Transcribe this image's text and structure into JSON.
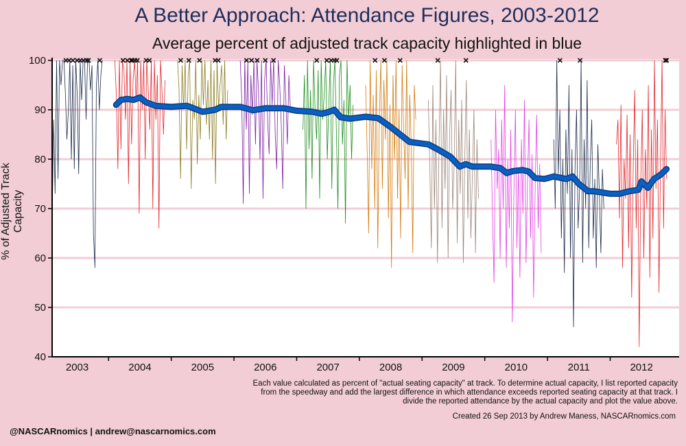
{
  "chart_data": {
    "type": "line",
    "title": "A Better Approach: Attendance Figures, 2003-2012",
    "subtitle": "Average percent of adjusted track capacity highlighted in blue",
    "ylabel": "% of Adjusted Track Capacity",
    "xlabel": "",
    "ylim": [
      40,
      100
    ],
    "xlim": [
      2002.6,
      2012.6
    ],
    "y_ticks": [
      "40",
      "50",
      "60",
      "70",
      "80",
      "90",
      "100"
    ],
    "x_ticks": [
      "2003",
      "2004",
      "2005",
      "2006",
      "2007",
      "2008",
      "2009",
      "2010",
      "2011",
      "2012"
    ],
    "gridlines": "horizontal",
    "series": [
      {
        "name": "",
        "color": "#0a5fc4",
        "x": [
          2003.62,
          2003.7,
          2003.8,
          2003.9,
          2004.0,
          2004.1,
          2004.25,
          2004.5,
          2004.75,
          2005.0,
          2005.2,
          2005.3,
          2005.6,
          2005.8,
          2006.0,
          2006.3,
          2006.5,
          2006.75,
          2006.9,
          2007.0,
          2007.1,
          2007.2,
          2007.35,
          2007.6,
          2007.8,
          2008.0,
          2008.15,
          2008.3,
          2008.6,
          2008.75,
          2008.95,
          2009.1,
          2009.2,
          2009.3,
          2009.6,
          2009.75,
          2009.85,
          2009.95,
          2010.1,
          2010.2,
          2010.3,
          2010.45,
          2010.6,
          2010.8,
          2010.9,
          2011.0,
          2011.15,
          2011.25,
          2011.5,
          2011.65,
          2011.8,
          2011.95,
          2012.0,
          2012.1,
          2012.2,
          2012.3,
          2012.4
        ],
        "y": [
          91.0,
          92.0,
          92.2,
          92.0,
          92.5,
          91.5,
          90.8,
          90.6,
          90.8,
          89.6,
          90.0,
          90.6,
          90.6,
          89.9,
          90.3,
          90.3,
          89.8,
          89.6,
          89.2,
          89.5,
          90.0,
          88.5,
          88.2,
          88.6,
          88.3,
          86.5,
          85.0,
          83.5,
          83.0,
          82.0,
          80.5,
          78.5,
          79.0,
          78.5,
          78.5,
          78.2,
          77.2,
          77.6,
          77.8,
          77.5,
          76.2,
          76.0,
          76.5,
          76.0,
          76.5,
          75.0,
          73.5,
          73.5,
          73.0,
          73.0,
          73.5,
          73.8,
          75.5,
          74.2,
          76.0,
          76.8,
          78.0
        ]
      }
    ],
    "track_lines": [
      {
        "year": 2003,
        "color": "#1b2a4a",
        "values": [
          67,
          88,
          73,
          100,
          76,
          100,
          95,
          100,
          100,
          93,
          84,
          90,
          100,
          80,
          99,
          78,
          100,
          93,
          77,
          100,
          92,
          100,
          100,
          88,
          100,
          100,
          94,
          99,
          65,
          58,
          95,
          100,
          90,
          97,
          100
        ]
      },
      {
        "year": 2004,
        "color": "#e0262b",
        "values": [
          100,
          93,
          78,
          100,
          82,
          100,
          98,
          88,
          100,
          75,
          100,
          83,
          96,
          100,
          92,
          100,
          69,
          100,
          90,
          100,
          80,
          100,
          94,
          86,
          100,
          70,
          100,
          88,
          97,
          66,
          100,
          94,
          85,
          96
        ]
      },
      {
        "year": 2005,
        "color": "#8a7a1e",
        "values": [
          100,
          94,
          76,
          99,
          90,
          100,
          82,
          97,
          100,
          74,
          92,
          88,
          100,
          79,
          93,
          84,
          100,
          91,
          100,
          87,
          96,
          84,
          100,
          80,
          98,
          75,
          100,
          90,
          95,
          99,
          87,
          100,
          84,
          94
        ]
      },
      {
        "year": 2006,
        "color": "#7b1fa2",
        "values": [
          100,
          92,
          71,
          100,
          86,
          100,
          73,
          97,
          89,
          100,
          83,
          100,
          94,
          80,
          100,
          72,
          96,
          100,
          88,
          81,
          100,
          91,
          100,
          85,
          78,
          100,
          95,
          87,
          74,
          99,
          92,
          83,
          97,
          90
        ]
      },
      {
        "year": 2007,
        "color": "#1e8c1e",
        "values": [
          86,
          97,
          70,
          100,
          82,
          94,
          76,
          100,
          90,
          84,
          98,
          72,
          100,
          88,
          93,
          100,
          80,
          91,
          100,
          74,
          95,
          100,
          86,
          70,
          97,
          100,
          83,
          92,
          67,
          100,
          88,
          95,
          80,
          91
        ]
      },
      {
        "year": 2008,
        "color": "#d4790a",
        "values": [
          95,
          82,
          65,
          100,
          78,
          93,
          70,
          98,
          62,
          88,
          100,
          74,
          96,
          84,
          100,
          68,
          91,
          58,
          97,
          80,
          100,
          72,
          90,
          64,
          99,
          86,
          76,
          100,
          70,
          93,
          83,
          61,
          95,
          88
        ]
      },
      {
        "year": 2009,
        "color": "#9a8478",
        "values": [
          92,
          78,
          62,
          95,
          70,
          88,
          59,
          82,
          100,
          66,
          90,
          74,
          97,
          60,
          85,
          94,
          70,
          79,
          100,
          63,
          88,
          73,
          92,
          59,
          81,
          96,
          68,
          86,
          64,
          77,
          90,
          61,
          84,
          72
        ]
      },
      {
        "year": 2010,
        "color": "#e23fe6",
        "values": [
          84,
          68,
          55,
          90,
          74,
          82,
          60,
          88,
          70,
          95,
          58,
          80,
          66,
          86,
          47,
          72,
          90,
          62,
          78,
          56,
          84,
          69,
          92,
          59,
          76,
          88,
          64,
          81,
          52,
          74,
          89,
          66,
          79,
          61
        ]
      },
      {
        "year": 2011,
        "color": "#1b2a4a",
        "values": [
          84,
          70,
          100,
          77,
          90,
          64,
          80,
          57,
          86,
          73,
          95,
          60,
          82,
          46,
          78,
          90,
          66,
          74,
          100,
          59,
          84,
          70,
          96,
          62,
          79,
          88,
          64,
          76,
          58,
          83,
          73,
          61,
          78,
          70
        ]
      },
      {
        "year": 2012,
        "color": "#e0262b",
        "values": [
          83,
          88,
          68,
          91,
          58,
          80,
          72,
          89,
          62,
          85,
          52,
          78,
          94,
          66,
          84,
          42,
          76,
          90,
          60,
          82,
          70,
          95,
          56,
          86,
          64,
          100,
          74,
          88,
          53,
          80,
          100,
          66,
          90,
          76
        ]
      }
    ],
    "caps_at_100": [
      2002.82,
      2002.87,
      2002.93,
      2003.0,
      2003.05,
      2003.1,
      2003.15,
      2003.18,
      2003.36,
      2003.73,
      2003.8,
      2003.86,
      2003.88,
      2003.92,
      2003.96,
      2004.1,
      2004.15,
      2004.65,
      2004.78,
      2004.95,
      2005.2,
      2005.25,
      2005.7,
      2005.78,
      2005.87,
      2006.0,
      2006.13,
      2006.82,
      2006.98,
      2007.05,
      2007.1,
      2007.14,
      2007.75,
      2007.9,
      2008.15,
      2008.75,
      2009.2,
      2010.7,
      2011.02,
      2012.38,
      2012.4
    ]
  },
  "notes": {
    "method": "Each value calculated as percent of \"actual seating capacity\" at track. To determine actual capacity, I list reported capacity from the speedway and add the largest difference in which attendance exceeds reported seating capacity at that track. I divide the reported attendance by the actual capacity and plot the value above.",
    "credit": "Created 26 Sep 2013 by Andrew Maness, NASCARnomics.com",
    "handle": "@NASCARnomics | andrew@nascarnomics.com"
  }
}
